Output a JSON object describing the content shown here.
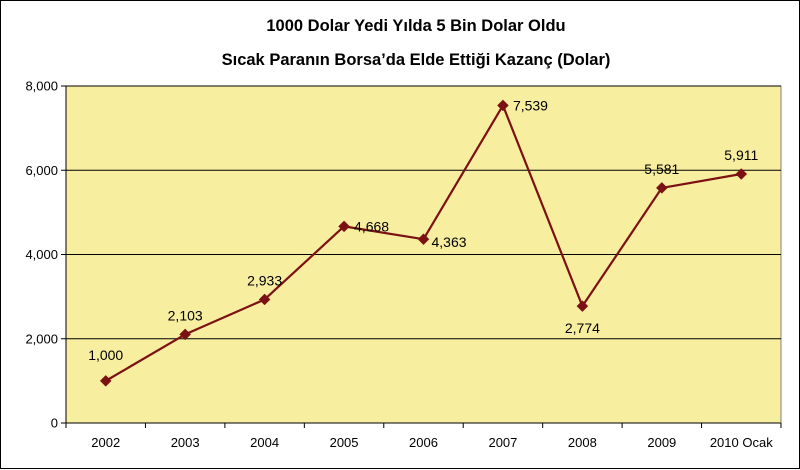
{
  "chart_data": {
    "type": "line",
    "title": "1000 Dolar Yedi Yılda 5 Bin Dolar Oldu",
    "subtitle": "Sıcak Paranın Borsa’da Elde Ettiği Kazanç (Dolar)",
    "xlabel": "",
    "ylabel": "",
    "categories": [
      "2002",
      "2003",
      "2004",
      "2005",
      "2006",
      "2007",
      "2008",
      "2009",
      "2010 Ocak"
    ],
    "series": [
      {
        "values": [
          1000,
          2103,
          2933,
          4668,
          4363,
          7539,
          2774,
          5581,
          5911
        ],
        "labels": [
          "1,000",
          "2,103",
          "2,933",
          "4,668",
          "4,363",
          "7,539",
          "2,774",
          "5,581",
          "5,911"
        ],
        "color": "#7B1113"
      }
    ],
    "ylim": [
      0,
      8000
    ],
    "yticks": [
      0,
      2000,
      4000,
      6000,
      8000
    ],
    "ytick_labels": [
      "0",
      "2,000",
      "4,000",
      "6,000",
      "8,000"
    ],
    "grid": true,
    "legend": "none",
    "plot_background": "#F8EEA0",
    "gridline_color": "#000000"
  }
}
